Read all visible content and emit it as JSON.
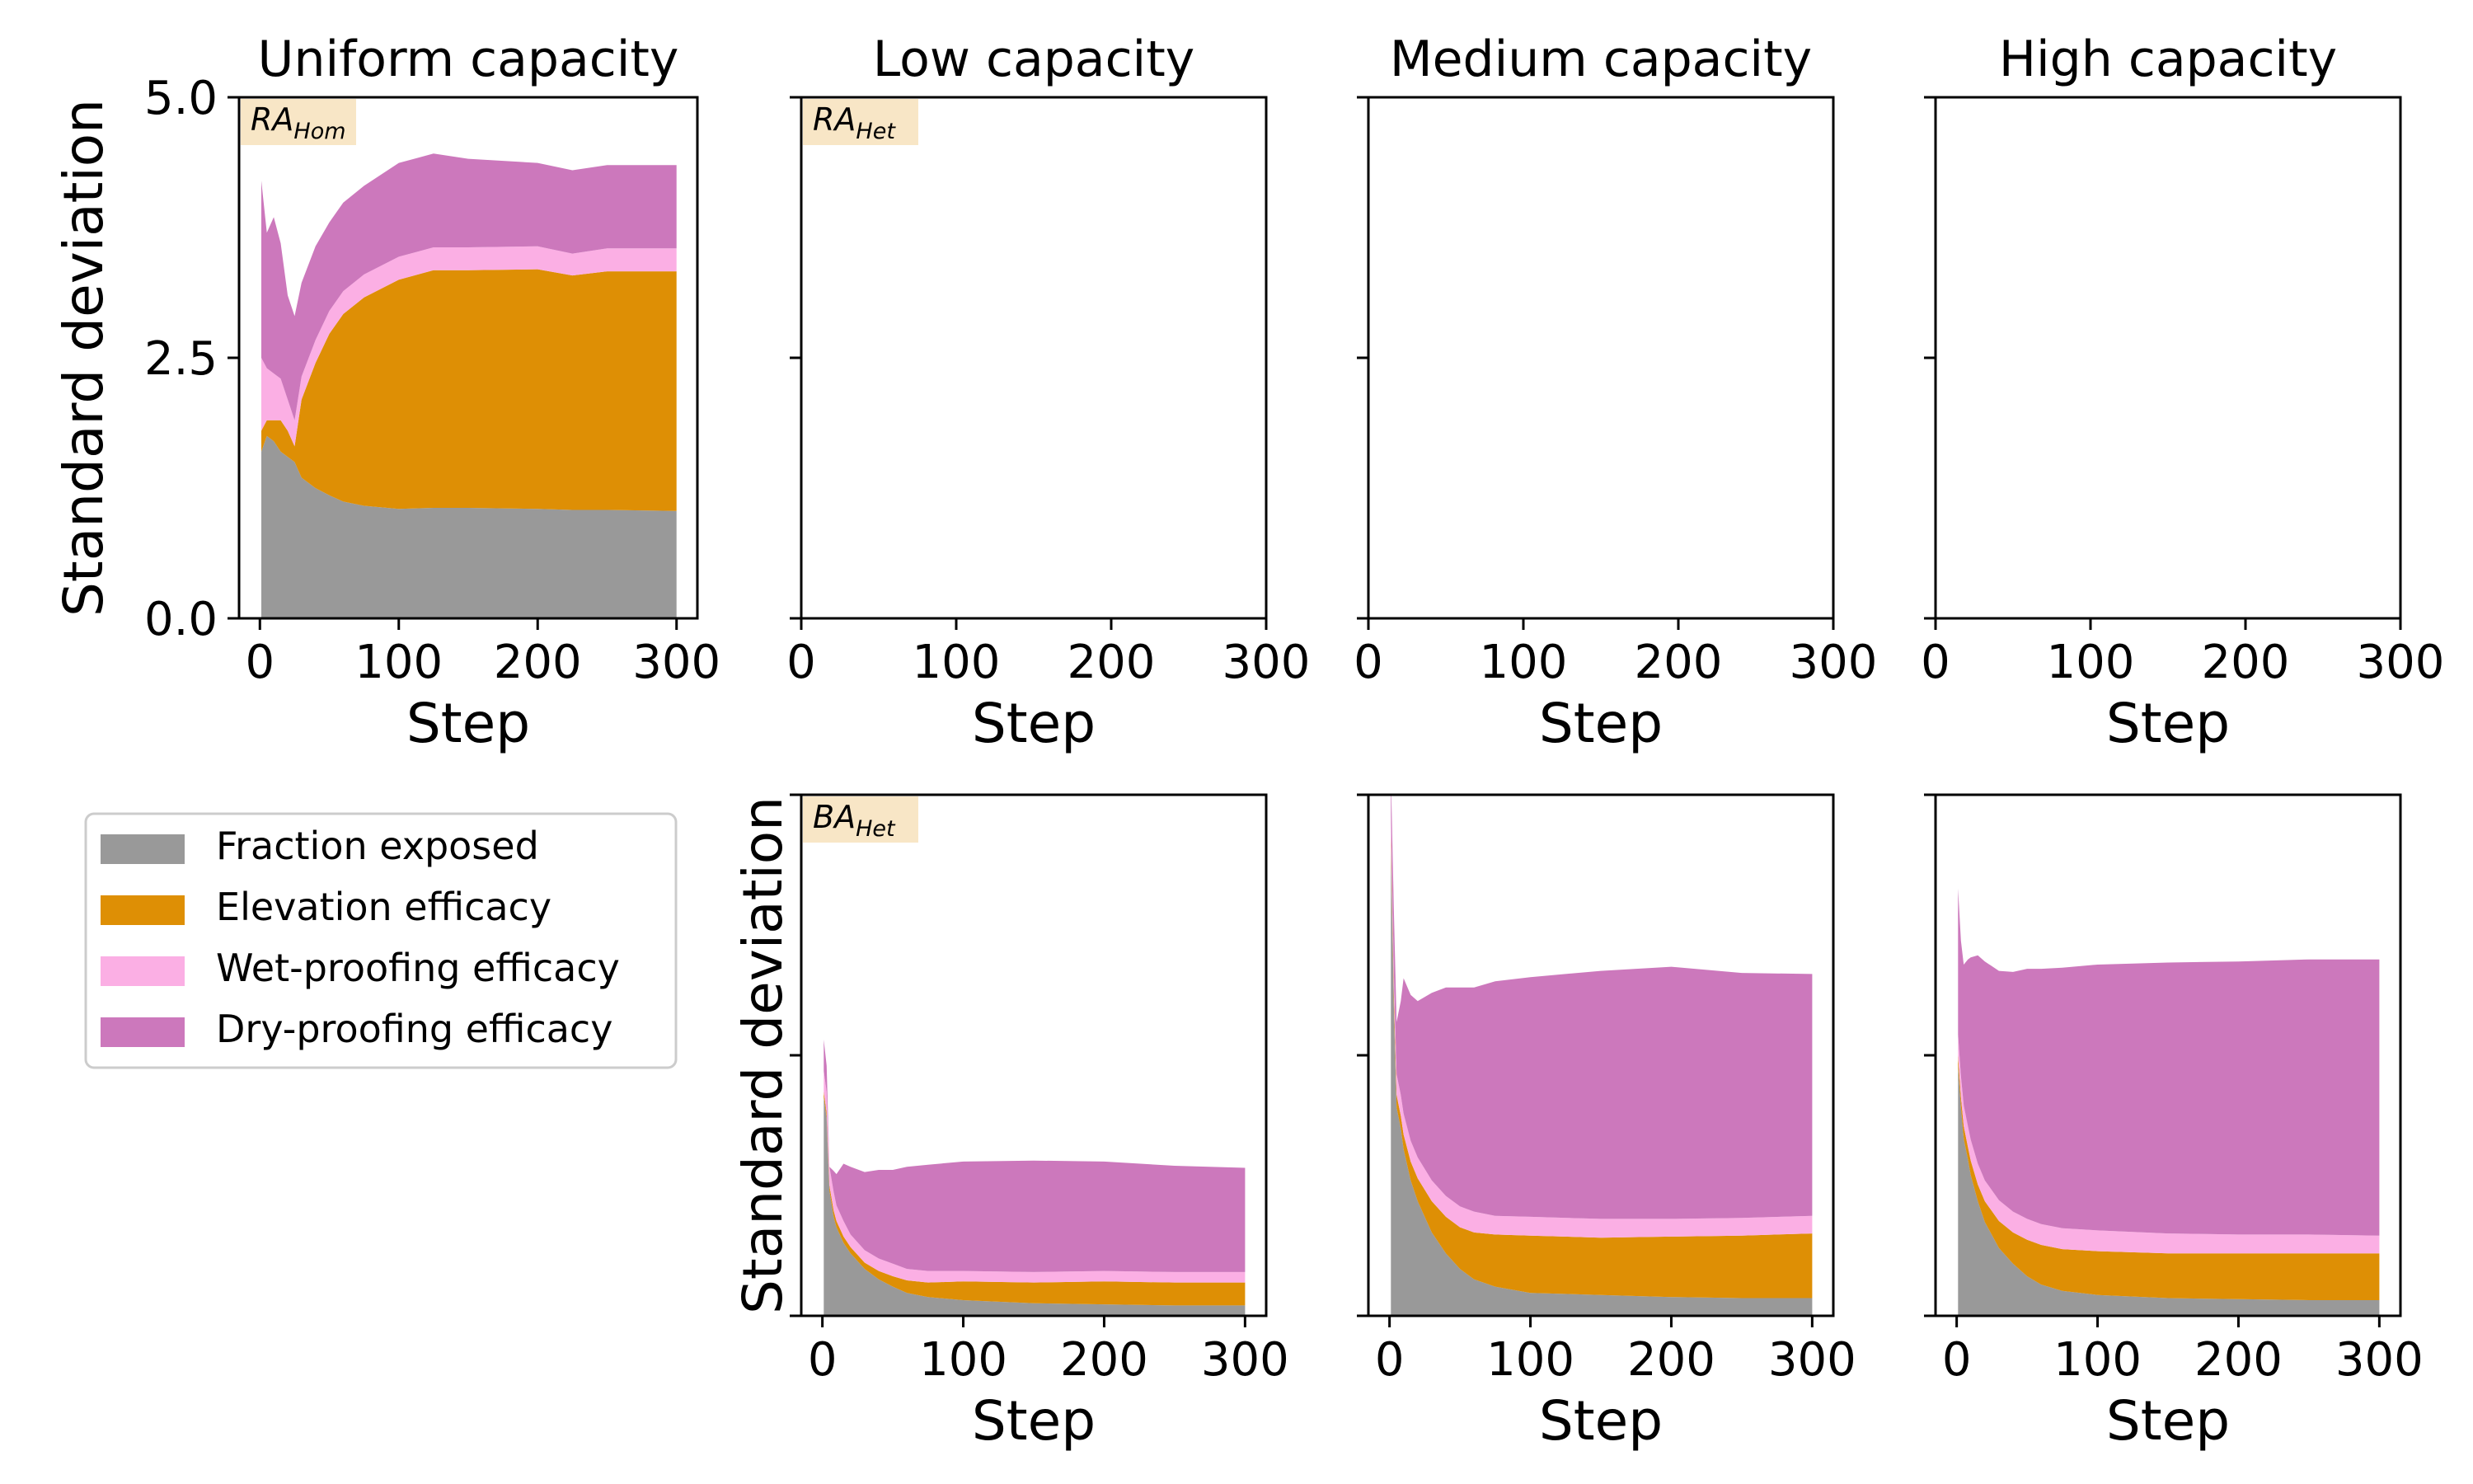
{
  "legend": {
    "placement": "left, below first row",
    "entries": [
      {
        "label": "Fraction exposed",
        "color": "#999999"
      },
      {
        "label": "Elevation efficacy",
        "color": "#de8f05"
      },
      {
        "label": "Wet-proofing efficacy",
        "color": "#fbafe4"
      },
      {
        "label": "Dry-proofing efficacy",
        "color": "#cc78bc"
      }
    ]
  },
  "chart_data": [
    {
      "id": "uniform",
      "type": "area",
      "stacked": true,
      "title": "Uniform capacity",
      "tag": {
        "base": "RA",
        "sub": "Hom"
      },
      "xlabel": "Step",
      "ylabel": "Standard deviation",
      "xlim": [
        -15,
        315
      ],
      "ylim": [
        0,
        5
      ],
      "xticks": [
        0,
        100,
        200,
        300
      ],
      "yticks": [
        0,
        2.5,
        5
      ],
      "ytick_labels": [
        "0.0",
        "2.5",
        "5.0"
      ],
      "x": [
        1,
        5,
        10,
        15,
        20,
        25,
        30,
        40,
        50,
        60,
        75,
        100,
        125,
        150,
        200,
        225,
        250,
        300
      ],
      "series": [
        {
          "name": "Fraction exposed",
          "color": "#999999",
          "values": [
            1.6,
            1.75,
            1.7,
            1.6,
            1.55,
            1.5,
            1.35,
            1.25,
            1.18,
            1.12,
            1.08,
            1.05,
            1.06,
            1.06,
            1.05,
            1.04,
            1.04,
            1.03
          ]
        },
        {
          "name": "Elevation efficacy",
          "color": "#de8f05",
          "values": [
            0.2,
            0.15,
            0.2,
            0.3,
            0.25,
            0.15,
            0.75,
            1.2,
            1.55,
            1.8,
            2.0,
            2.2,
            2.28,
            2.28,
            2.3,
            2.25,
            2.29,
            2.3
          ]
        },
        {
          "name": "Wet-proofing efficacy",
          "color": "#fbafe4",
          "values": [
            0.7,
            0.5,
            0.45,
            0.4,
            0.3,
            0.25,
            0.22,
            0.22,
            0.22,
            0.22,
            0.22,
            0.22,
            0.22,
            0.22,
            0.22,
            0.21,
            0.22,
            0.22
          ]
        },
        {
          "name": "Dry-proofing efficacy",
          "color": "#cc78bc",
          "values": [
            1.7,
            1.3,
            1.5,
            1.3,
            1.0,
            1.0,
            0.9,
            0.9,
            0.85,
            0.85,
            0.85,
            0.9,
            0.9,
            0.85,
            0.8,
            0.8,
            0.8,
            0.8
          ]
        }
      ]
    },
    {
      "id": "low-top",
      "type": "area",
      "stacked": true,
      "title": "Low capacity",
      "tag": {
        "base": "RA",
        "sub": "Het"
      },
      "xlabel": "Step",
      "ylabel": "",
      "xlim": [
        0,
        300
      ],
      "ylim": [
        0,
        5
      ],
      "xticks": [
        0,
        100,
        200,
        300
      ],
      "yticks": [
        0,
        2.5,
        5
      ],
      "ytick_labels": [
        "",
        "",
        ""
      ],
      "x": [],
      "series": []
    },
    {
      "id": "medium-top",
      "type": "area",
      "stacked": true,
      "title": "Medium capacity",
      "tag": null,
      "xlabel": "Step",
      "ylabel": "",
      "xlim": [
        0,
        300
      ],
      "ylim": [
        0,
        5
      ],
      "xticks": [
        0,
        100,
        200,
        300
      ],
      "yticks": [
        0,
        2.5,
        5
      ],
      "ytick_labels": [
        "",
        "",
        ""
      ],
      "x": [],
      "series": []
    },
    {
      "id": "high-top",
      "type": "area",
      "stacked": true,
      "title": "High capacity",
      "tag": null,
      "xlabel": "Step",
      "ylabel": "",
      "xlim": [
        0,
        300
      ],
      "ylim": [
        0,
        5
      ],
      "xticks": [
        0,
        100,
        200,
        300
      ],
      "yticks": [
        0,
        2.5,
        5
      ],
      "ytick_labels": [
        "",
        "",
        ""
      ],
      "x": [],
      "series": []
    },
    {
      "id": "low-bottom",
      "type": "area",
      "stacked": true,
      "title": "",
      "tag": {
        "base": "BA",
        "sub": "Het"
      },
      "xlabel": "Step",
      "ylabel": "Standard deviation",
      "xlim": [
        -15,
        315
      ],
      "ylim": [
        0,
        5
      ],
      "xticks": [
        0,
        100,
        200,
        300
      ],
      "yticks": [
        0,
        2.5,
        5
      ],
      "ytick_labels": [
        "",
        "",
        ""
      ],
      "x": [
        1,
        3,
        5,
        8,
        10,
        15,
        20,
        30,
        40,
        50,
        60,
        75,
        100,
        150,
        200,
        250,
        300
      ],
      "series": [
        {
          "name": "Fraction exposed",
          "color": "#999999",
          "values": [
            2.1,
            1.9,
            1.2,
            0.95,
            0.85,
            0.7,
            0.6,
            0.45,
            0.35,
            0.28,
            0.22,
            0.18,
            0.15,
            0.12,
            0.11,
            0.1,
            0.1
          ]
        },
        {
          "name": "Elevation efficacy",
          "color": "#de8f05",
          "values": [
            0.05,
            0.05,
            0.05,
            0.06,
            0.06,
            0.06,
            0.06,
            0.06,
            0.08,
            0.1,
            0.12,
            0.14,
            0.18,
            0.2,
            0.22,
            0.22,
            0.22
          ]
        },
        {
          "name": "Wet-proofing efficacy",
          "color": "#fbafe4",
          "values": [
            0.2,
            0.2,
            0.18,
            0.18,
            0.15,
            0.15,
            0.12,
            0.12,
            0.12,
            0.12,
            0.11,
            0.11,
            0.1,
            0.1,
            0.1,
            0.1,
            0.1
          ]
        },
        {
          "name": "Dry-proofing efficacy",
          "color": "#cc78bc",
          "values": [
            0.3,
            0.25,
            0.0,
            0.2,
            0.3,
            0.55,
            0.65,
            0.75,
            0.85,
            0.9,
            0.98,
            1.02,
            1.05,
            1.07,
            1.05,
            1.02,
            1.0
          ]
        }
      ]
    },
    {
      "id": "medium-bottom",
      "type": "area",
      "stacked": true,
      "title": "",
      "tag": null,
      "xlabel": "Step",
      "ylabel": "",
      "xlim": [
        -15,
        315
      ],
      "ylim": [
        0,
        5
      ],
      "xticks": [
        0,
        100,
        200,
        300
      ],
      "yticks": [
        0,
        2.5,
        5
      ],
      "ytick_labels": [
        "",
        "",
        ""
      ],
      "x": [
        1,
        3,
        5,
        8,
        10,
        15,
        20,
        30,
        40,
        50,
        60,
        75,
        100,
        150,
        200,
        250,
        300
      ],
      "series": [
        {
          "name": "Fraction exposed",
          "color": "#999999",
          "values": [
            4.5,
            3.0,
            2.0,
            1.8,
            1.6,
            1.3,
            1.1,
            0.8,
            0.6,
            0.45,
            0.35,
            0.28,
            0.22,
            0.2,
            0.18,
            0.17,
            0.17
          ]
        },
        {
          "name": "Elevation efficacy",
          "color": "#de8f05",
          "values": [
            0.1,
            0.12,
            0.12,
            0.12,
            0.14,
            0.18,
            0.22,
            0.3,
            0.35,
            0.4,
            0.45,
            0.5,
            0.55,
            0.55,
            0.58,
            0.6,
            0.62
          ]
        },
        {
          "name": "Wet-proofing efficacy",
          "color": "#fbafe4",
          "values": [
            0.2,
            0.2,
            0.2,
            0.2,
            0.2,
            0.2,
            0.2,
            0.2,
            0.2,
            0.2,
            0.2,
            0.18,
            0.18,
            0.18,
            0.17,
            0.17,
            0.17
          ]
        },
        {
          "name": "Dry-proofing efficacy",
          "color": "#cc78bc",
          "values": [
            0.4,
            0.6,
            0.5,
            0.9,
            1.3,
            1.4,
            1.5,
            1.8,
            2.0,
            2.1,
            2.15,
            2.25,
            2.3,
            2.38,
            2.42,
            2.35,
            2.32
          ]
        }
      ]
    },
    {
      "id": "high-bottom",
      "type": "area",
      "stacked": true,
      "title": "",
      "tag": null,
      "xlabel": "Step",
      "ylabel": "",
      "xlim": [
        -15,
        315
      ],
      "ylim": [
        0,
        5
      ],
      "xticks": [
        0,
        100,
        200,
        300
      ],
      "yticks": [
        0,
        2.5,
        5
      ],
      "ytick_labels": [
        "",
        "",
        ""
      ],
      "x": [
        1,
        3,
        5,
        8,
        10,
        15,
        20,
        30,
        40,
        50,
        60,
        75,
        100,
        150,
        200,
        250,
        300
      ],
      "series": [
        {
          "name": "Fraction exposed",
          "color": "#999999",
          "values": [
            2.4,
            2.0,
            1.7,
            1.5,
            1.35,
            1.1,
            0.9,
            0.65,
            0.5,
            0.38,
            0.3,
            0.24,
            0.2,
            0.17,
            0.16,
            0.15,
            0.15
          ]
        },
        {
          "name": "Elevation efficacy",
          "color": "#de8f05",
          "values": [
            0.1,
            0.1,
            0.12,
            0.12,
            0.14,
            0.16,
            0.2,
            0.26,
            0.3,
            0.35,
            0.38,
            0.4,
            0.42,
            0.43,
            0.44,
            0.45,
            0.45
          ]
        },
        {
          "name": "Wet-proofing efficacy",
          "color": "#fbafe4",
          "values": [
            0.2,
            0.2,
            0.2,
            0.2,
            0.2,
            0.2,
            0.2,
            0.2,
            0.2,
            0.2,
            0.2,
            0.2,
            0.2,
            0.19,
            0.18,
            0.18,
            0.17
          ]
        },
        {
          "name": "Dry-proofing efficacy",
          "color": "#cc78bc",
          "values": [
            1.4,
            1.3,
            1.35,
            1.6,
            1.75,
            2.0,
            2.1,
            2.2,
            2.3,
            2.4,
            2.45,
            2.5,
            2.55,
            2.6,
            2.62,
            2.64,
            2.65
          ]
        }
      ]
    }
  ]
}
